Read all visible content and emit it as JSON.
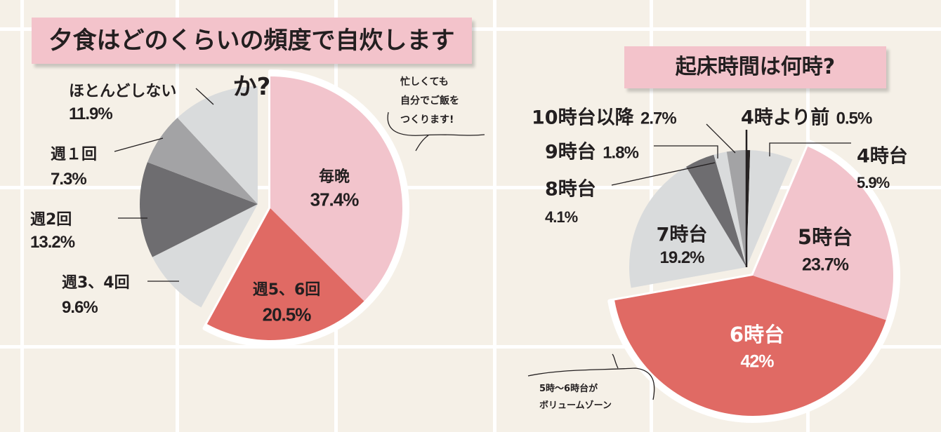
{
  "colors": {
    "background": "#f5f0e7",
    "grid": "#ffffff",
    "title_box": "#f3c3cb",
    "pink": "#f2c4cc",
    "red": "#e06a64",
    "light_gray": "#d9dbdc",
    "mid_gray": "#a3a3a5",
    "dark_gray": "#6e6d70",
    "near_black": "#2a2626"
  },
  "chart_data": [
    {
      "type": "pie",
      "title": "夕食はどのくらいの頻度で自炊しますか?",
      "annotation": [
        "忙しくても",
        "自分でご飯を",
        "つくります!"
      ],
      "start": "12 o'clock, clockwise",
      "slices": [
        {
          "label": "毎晩",
          "value": 37.4,
          "value_label": "37.4%",
          "color": "#f2c4cc",
          "highlighted": true
        },
        {
          "label": "週5、6回",
          "value": 20.5,
          "value_label": "20.5%",
          "color": "#e06a64",
          "highlighted": true
        },
        {
          "label": "週3、4回",
          "value": 9.6,
          "value_label": "9.6%",
          "color": "#d9dbdc",
          "highlighted": false
        },
        {
          "label": "週2回",
          "value": 13.2,
          "value_label": "13.2%",
          "color": "#6e6d70",
          "highlighted": false
        },
        {
          "label": "週１回",
          "value": 7.3,
          "value_label": "7.3%",
          "color": "#a3a3a5",
          "highlighted": false
        },
        {
          "label": "ほとんどしない",
          "value": 11.9,
          "value_label": "11.9%",
          "color": "#d9dbdc",
          "highlighted": false
        }
      ]
    },
    {
      "type": "pie",
      "title": "起床時間は何時?",
      "annotation": [
        "5時～6時台が",
        "ボリュームゾーン"
      ],
      "start": "12 o'clock, clockwise",
      "slices": [
        {
          "label": "4時より前",
          "value": 0.5,
          "value_label": "0.5%",
          "color": "#2a2626",
          "highlighted": false
        },
        {
          "label": "4時台",
          "value": 5.9,
          "value_label": "5.9%",
          "color": "#d9dbdc",
          "highlighted": false
        },
        {
          "label": "5時台",
          "value": 23.7,
          "value_label": "23.7%",
          "color": "#f2c4cc",
          "highlighted": true
        },
        {
          "label": "6時台",
          "value": 42,
          "value_label": "42%",
          "color": "#e06a64",
          "highlighted": true
        },
        {
          "label": "7時台",
          "value": 19.2,
          "value_label": "19.2%",
          "color": "#d9dbdc",
          "highlighted": false
        },
        {
          "label": "8時台",
          "value": 4.1,
          "value_label": "4.1%",
          "color": "#6e6d70",
          "highlighted": false
        },
        {
          "label": "9時台",
          "value": 1.8,
          "value_label": "1.8%",
          "color": "#d9dbdc",
          "highlighted": false
        },
        {
          "label": "10時台以降",
          "value": 2.7,
          "value_label": "2.7%",
          "color": "#a3a3a5",
          "highlighted": false
        }
      ]
    }
  ]
}
